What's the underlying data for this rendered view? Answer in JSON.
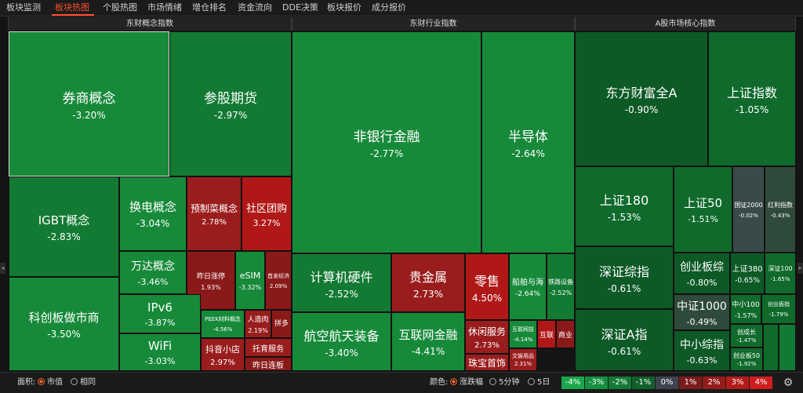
{
  "tabs": [
    {
      "label": "板块监测",
      "active": false
    },
    {
      "label": "板块热图",
      "active": true
    },
    {
      "label": "个股热图",
      "active": false
    },
    {
      "label": "市场情绪",
      "active": false
    },
    {
      "label": "增仓排名",
      "active": false
    },
    {
      "label": "资金流向",
      "active": false
    },
    {
      "label": "DDE决策",
      "active": false
    },
    {
      "label": "板块报价",
      "active": false
    },
    {
      "label": "成分报价",
      "active": false
    }
  ],
  "panels": [
    {
      "title": "东财概念指数"
    },
    {
      "title": "东财行业指数"
    },
    {
      "title": "A股市场核心指数"
    }
  ],
  "tiles": [
    {
      "name": "券商概念",
      "chg": "-3.20%",
      "color": "g1"
    },
    {
      "name": "参股期货",
      "chg": "-2.97%",
      "color": "g2"
    },
    {
      "name": "IGBT概念",
      "chg": "-2.83%",
      "color": "g2"
    },
    {
      "name": "换电概念",
      "chg": "-3.04%",
      "color": "g1"
    },
    {
      "name": "预制菜概念",
      "chg": "2.78%",
      "color": "r1"
    },
    {
      "name": "社区团购",
      "chg": "3.27%",
      "color": "r2"
    },
    {
      "name": "万达概念",
      "chg": "-3.46%",
      "color": "g1"
    },
    {
      "name": "昨日涨停",
      "chg": "1.93%",
      "color": "r3"
    },
    {
      "name": "eSIM",
      "chg": "-3.32%",
      "color": "g1"
    },
    {
      "name": "首发经济",
      "chg": "2.09%",
      "color": "r3"
    },
    {
      "name": "科创板做市商",
      "chg": "-3.50%",
      "color": "g1"
    },
    {
      "name": "IPv6",
      "chg": "-3.87%",
      "color": "g1"
    },
    {
      "name": "PEEK材料概念",
      "chg": "-4.56%",
      "color": "g1"
    },
    {
      "name": "人造肉",
      "chg": "2.19%",
      "color": "r1"
    },
    {
      "name": "拼多",
      "chg": "",
      "color": "r3"
    },
    {
      "name": "WiFi",
      "chg": "-3.03%",
      "color": "g1"
    },
    {
      "name": "抖音小店",
      "chg": "2.97%",
      "color": "r1"
    },
    {
      "name": "托育服务",
      "chg": "",
      "color": "r1"
    },
    {
      "name": "昨日连板",
      "chg": "",
      "color": "r3"
    },
    {
      "name": "非银行金融",
      "chg": "-2.77%",
      "color": "g1"
    },
    {
      "name": "半导体",
      "chg": "-2.64%",
      "color": "g1"
    },
    {
      "name": "计算机硬件",
      "chg": "-2.52%",
      "color": "g2"
    },
    {
      "name": "贵金属",
      "chg": "2.73%",
      "color": "r1"
    },
    {
      "name": "零售",
      "chg": "4.50%",
      "color": "r2"
    },
    {
      "name": "船舶与海",
      "chg": "-2.64%",
      "color": "g1"
    },
    {
      "name": "铁路设备",
      "chg": "-2.52%",
      "color": "g2"
    },
    {
      "name": "航空航天装备",
      "chg": "-3.40%",
      "color": "g1"
    },
    {
      "name": "互联网金融",
      "chg": "-4.41%",
      "color": "g1"
    },
    {
      "name": "休闲服务",
      "chg": "2.73%",
      "color": "r1"
    },
    {
      "name": "互联网技",
      "chg": "-4.14%",
      "color": "g1"
    },
    {
      "name": "互联",
      "chg": "",
      "color": "r2"
    },
    {
      "name": "商业",
      "chg": "",
      "color": "r3"
    },
    {
      "name": "文娱用品",
      "chg": "2.31%",
      "color": "r1"
    },
    {
      "name": "珠宝首饰",
      "chg": "",
      "color": "r1"
    },
    {
      "name": "东方财富全A",
      "chg": "-0.90%",
      "color": "g4"
    },
    {
      "name": "上证指数",
      "chg": "-1.05%",
      "color": "g3"
    },
    {
      "name": "上证180",
      "chg": "-1.53%",
      "color": "g3"
    },
    {
      "name": "上证50",
      "chg": "-1.51%",
      "color": "g3"
    },
    {
      "name": "国证2000",
      "chg": "-0.02%",
      "color": "gray"
    },
    {
      "name": "红利指数",
      "chg": "-0.43%",
      "color": "gray2"
    },
    {
      "name": "深证综指",
      "chg": "-0.61%",
      "color": "g4"
    },
    {
      "name": "创业板综",
      "chg": "-0.80%",
      "color": "g4"
    },
    {
      "name": "上证380",
      "chg": "-0.65%",
      "color": "g4"
    },
    {
      "name": "深证100",
      "chg": "-1.65%",
      "color": "g3"
    },
    {
      "name": "中证1000",
      "chg": "-0.49%",
      "color": "gray2"
    },
    {
      "name": "中小100",
      "chg": "-1.57%",
      "color": "g3"
    },
    {
      "name": "创业板指",
      "chg": "-1.79%",
      "color": "g3"
    },
    {
      "name": "深证A指",
      "chg": "-0.61%",
      "color": "g4"
    },
    {
      "name": "中小综指",
      "chg": "-0.63%",
      "color": "g4"
    },
    {
      "name": "创成长",
      "chg": "-1.47%",
      "color": "g3"
    },
    {
      "name": "创业板50",
      "chg": "-1.92%",
      "color": "g3"
    }
  ],
  "bottom": {
    "area_label": "面积:",
    "area_options": [
      {
        "label": "市值",
        "selected": true
      },
      {
        "label": "相同",
        "selected": false
      }
    ],
    "color_label": "颜色:",
    "color_options": [
      {
        "label": "涨跌幅",
        "selected": true
      },
      {
        "label": "5分钟",
        "selected": false
      },
      {
        "label": "5日",
        "selected": false
      }
    ],
    "legend": [
      {
        "label": "-4%",
        "color": "#1aa64a"
      },
      {
        "label": "-3%",
        "color": "#169040"
      },
      {
        "label": "-2%",
        "color": "#137a36"
      },
      {
        "label": "-1%",
        "color": "#10612c"
      },
      {
        "label": "0%",
        "color": "#3e4350"
      },
      {
        "label": "1%",
        "color": "#7a1c1c"
      },
      {
        "label": "2%",
        "color": "#951c1c"
      },
      {
        "label": "3%",
        "color": "#b31b1b"
      },
      {
        "label": "4%",
        "color": "#d01c1c"
      }
    ],
    "settings_icon": "gear-icon"
  }
}
